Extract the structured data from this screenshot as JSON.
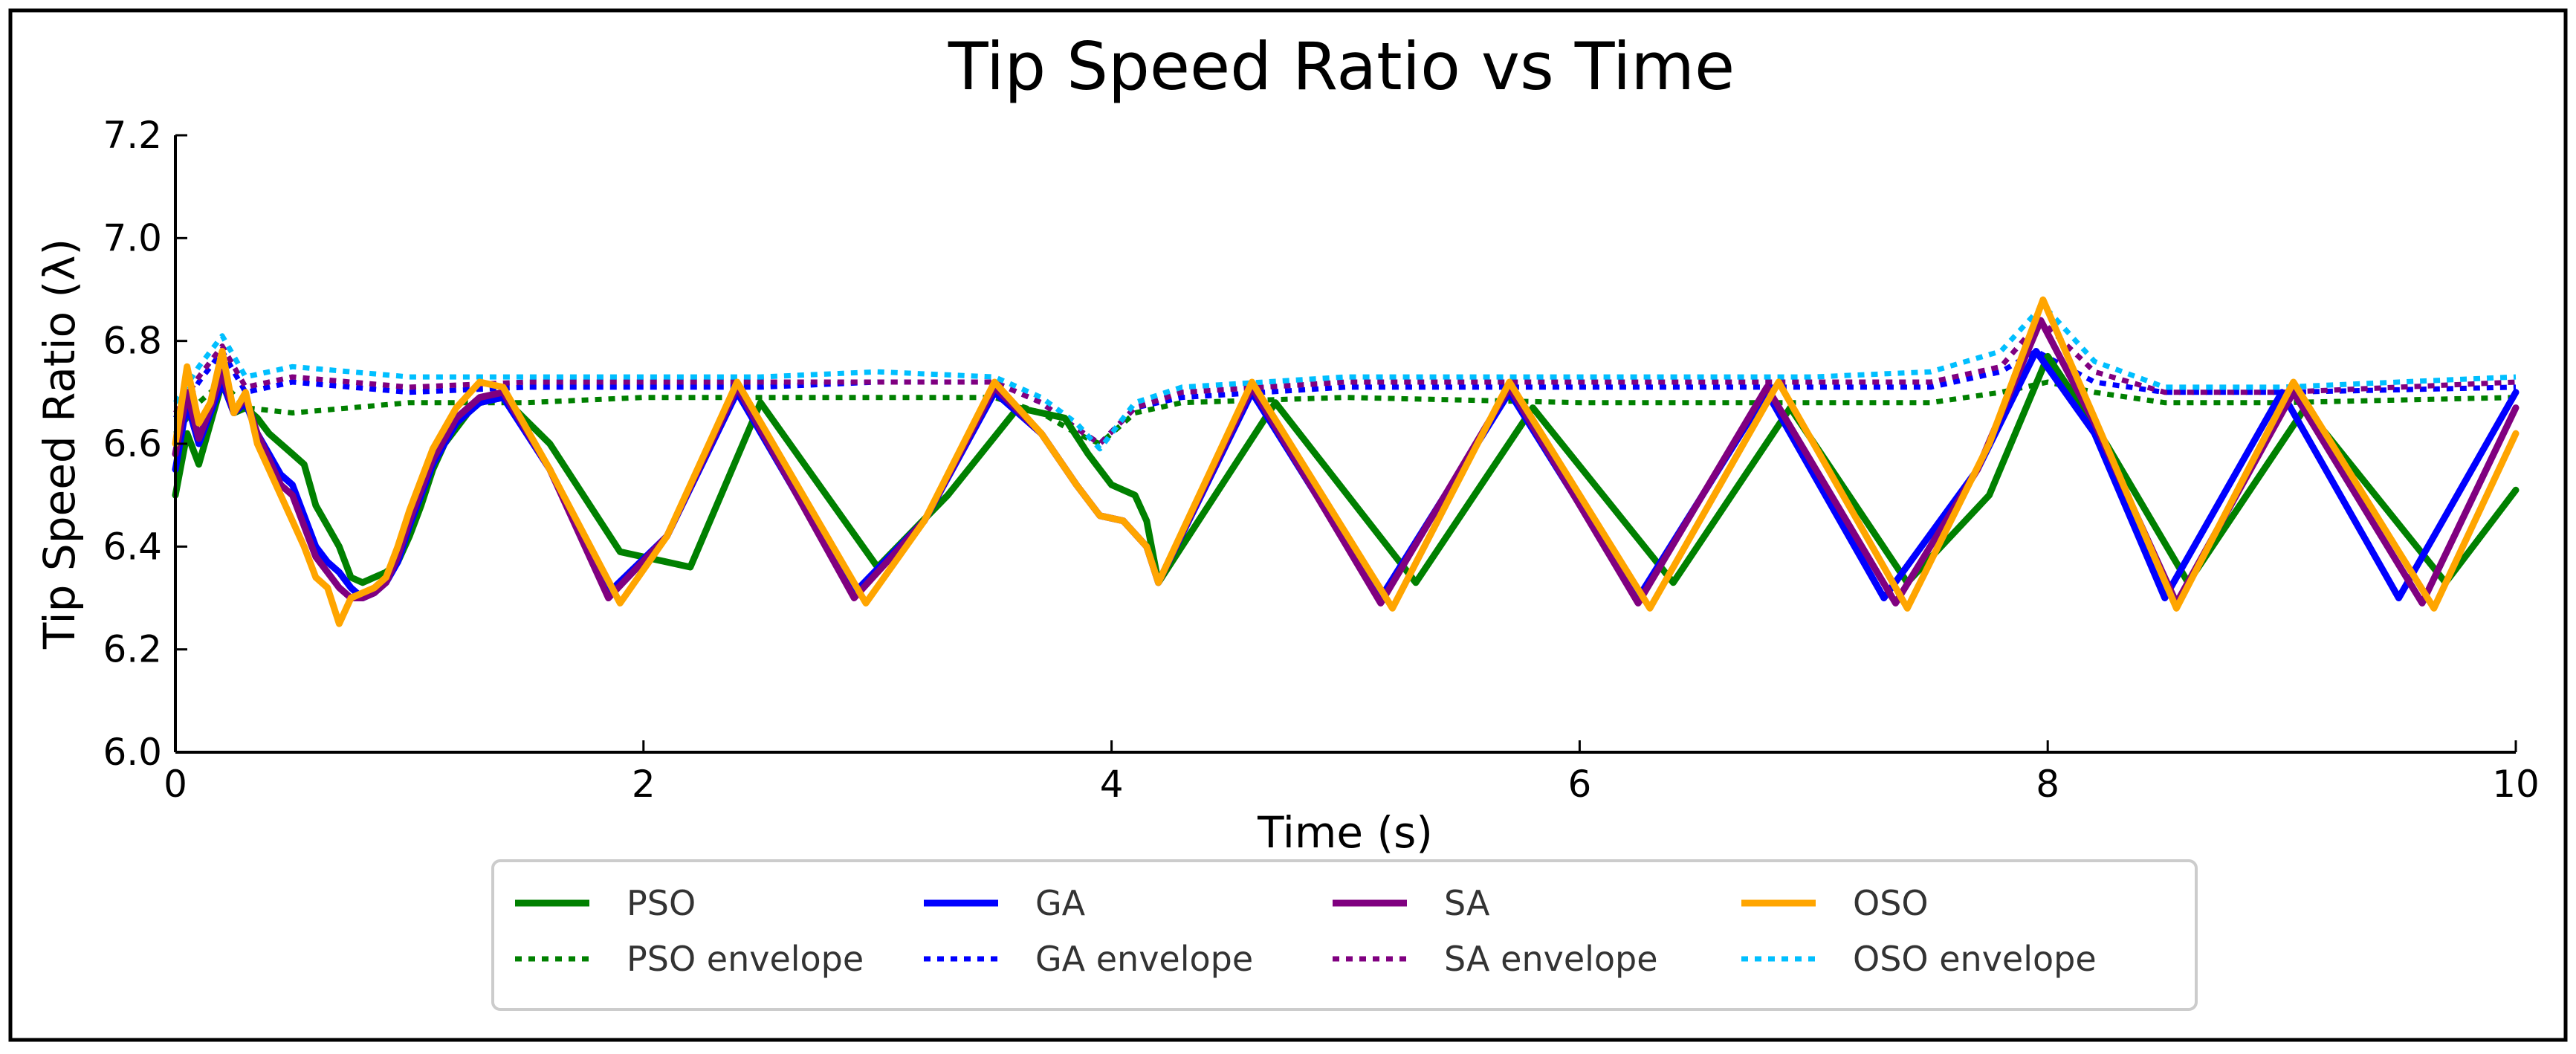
{
  "chart_data": {
    "type": "line",
    "title": "Tip Speed Ratio vs Time",
    "xlabel": "Time (s)",
    "ylabel": "Tip Speed Ratio (λ)",
    "xlim": [
      0,
      10
    ],
    "ylim": [
      6.0,
      7.2
    ],
    "x_ticks": [
      "0",
      "2",
      "4",
      "6",
      "8",
      "10"
    ],
    "y_ticks": [
      "6.0",
      "6.2",
      "6.4",
      "6.6",
      "6.8",
      "7.0",
      "7.2"
    ],
    "grid": false,
    "legend": {
      "placement": "bottom-outside",
      "columns": 4
    },
    "series": [
      {
        "name": "PSO",
        "style": "solid",
        "color": "#008000",
        "x": [
          0.0,
          0.05,
          0.1,
          0.15,
          0.2,
          0.25,
          0.3,
          0.35,
          0.4,
          0.45,
          0.5,
          0.55,
          0.6,
          0.65,
          0.7,
          0.75,
          0.8,
          0.85,
          0.9,
          0.95,
          1.0,
          1.05,
          1.1,
          1.15,
          1.2,
          1.25,
          1.3,
          1.4,
          1.6,
          1.9,
          2.2,
          2.5,
          3.0,
          3.3,
          3.6,
          3.8,
          3.9,
          4.0,
          4.1,
          4.15,
          4.2,
          4.7,
          5.3,
          5.8,
          6.4,
          6.9,
          7.4,
          7.75,
          8.0,
          8.25,
          8.6,
          9.1,
          9.7,
          10.0
        ],
        "y": [
          6.5,
          6.62,
          6.56,
          6.64,
          6.72,
          6.66,
          6.67,
          6.65,
          6.62,
          6.6,
          6.58,
          6.56,
          6.48,
          6.44,
          6.4,
          6.34,
          6.33,
          6.34,
          6.35,
          6.37,
          6.42,
          6.48,
          6.55,
          6.6,
          6.63,
          6.66,
          6.68,
          6.69,
          6.6,
          6.39,
          6.36,
          6.68,
          6.36,
          6.5,
          6.67,
          6.65,
          6.58,
          6.52,
          6.5,
          6.45,
          6.33,
          6.68,
          6.33,
          6.67,
          6.33,
          6.67,
          6.33,
          6.5,
          6.77,
          6.6,
          6.33,
          6.67,
          6.33,
          6.51
        ]
      },
      {
        "name": "GA",
        "style": "solid",
        "color": "#0000ff",
        "x": [
          0.0,
          0.05,
          0.1,
          0.15,
          0.2,
          0.25,
          0.3,
          0.35,
          0.4,
          0.45,
          0.5,
          0.55,
          0.6,
          0.65,
          0.7,
          0.75,
          0.8,
          0.85,
          0.9,
          0.95,
          1.0,
          1.1,
          1.2,
          1.3,
          1.4,
          1.6,
          1.85,
          2.1,
          2.4,
          2.9,
          3.2,
          3.5,
          3.7,
          3.85,
          3.95,
          4.05,
          4.15,
          4.2,
          4.6,
          5.15,
          5.7,
          6.25,
          6.8,
          7.3,
          7.7,
          7.95,
          8.2,
          8.5,
          9.0,
          9.5,
          10.0
        ],
        "y": [
          6.55,
          6.68,
          6.6,
          6.66,
          6.72,
          6.66,
          6.68,
          6.62,
          6.58,
          6.54,
          6.52,
          6.46,
          6.4,
          6.37,
          6.35,
          6.32,
          6.3,
          6.31,
          6.33,
          6.37,
          6.44,
          6.56,
          6.64,
          6.68,
          6.69,
          6.55,
          6.31,
          6.42,
          6.7,
          6.31,
          6.45,
          6.7,
          6.62,
          6.52,
          6.46,
          6.45,
          6.4,
          6.33,
          6.7,
          6.3,
          6.7,
          6.3,
          6.7,
          6.3,
          6.55,
          6.78,
          6.62,
          6.3,
          6.7,
          6.3,
          6.7
        ]
      },
      {
        "name": "SA",
        "style": "solid",
        "color": "#800080",
        "x": [
          0.0,
          0.05,
          0.1,
          0.15,
          0.2,
          0.25,
          0.3,
          0.35,
          0.4,
          0.45,
          0.5,
          0.55,
          0.6,
          0.65,
          0.7,
          0.75,
          0.8,
          0.85,
          0.9,
          0.95,
          1.0,
          1.1,
          1.2,
          1.3,
          1.4,
          1.6,
          1.85,
          2.1,
          2.4,
          2.9,
          3.2,
          3.5,
          3.7,
          3.85,
          3.95,
          4.05,
          4.15,
          4.2,
          4.6,
          5.15,
          5.7,
          6.25,
          6.8,
          7.35,
          7.7,
          7.97,
          8.2,
          8.55,
          9.05,
          9.6,
          10.0
        ],
        "y": [
          6.58,
          6.7,
          6.61,
          6.67,
          6.74,
          6.66,
          6.69,
          6.62,
          6.57,
          6.52,
          6.5,
          6.44,
          6.38,
          6.35,
          6.32,
          6.3,
          6.3,
          6.31,
          6.33,
          6.38,
          6.45,
          6.57,
          6.65,
          6.69,
          6.7,
          6.55,
          6.3,
          6.42,
          6.71,
          6.3,
          6.45,
          6.71,
          6.62,
          6.52,
          6.46,
          6.45,
          6.4,
          6.33,
          6.71,
          6.29,
          6.71,
          6.29,
          6.71,
          6.29,
          6.55,
          6.84,
          6.64,
          6.29,
          6.7,
          6.29,
          6.67
        ]
      },
      {
        "name": "OSO",
        "style": "solid",
        "color": "#ffa500",
        "x": [
          0.0,
          0.05,
          0.1,
          0.15,
          0.2,
          0.25,
          0.3,
          0.35,
          0.4,
          0.45,
          0.5,
          0.55,
          0.6,
          0.65,
          0.7,
          0.75,
          0.8,
          0.85,
          0.9,
          0.95,
          1.0,
          1.1,
          1.2,
          1.3,
          1.4,
          1.6,
          1.9,
          2.1,
          2.4,
          2.95,
          3.2,
          3.5,
          3.7,
          3.85,
          3.95,
          4.05,
          4.15,
          4.2,
          4.6,
          5.2,
          5.7,
          6.3,
          6.85,
          7.4,
          7.75,
          7.98,
          8.2,
          8.55,
          9.05,
          9.65,
          10.0
        ],
        "y": [
          6.6,
          6.75,
          6.64,
          6.68,
          6.78,
          6.66,
          6.7,
          6.6,
          6.55,
          6.5,
          6.45,
          6.4,
          6.34,
          6.32,
          6.25,
          6.3,
          6.31,
          6.32,
          6.34,
          6.4,
          6.47,
          6.59,
          6.67,
          6.72,
          6.71,
          6.55,
          6.29,
          6.42,
          6.72,
          6.29,
          6.45,
          6.72,
          6.62,
          6.52,
          6.46,
          6.45,
          6.4,
          6.33,
          6.72,
          6.28,
          6.72,
          6.28,
          6.72,
          6.28,
          6.6,
          6.88,
          6.65,
          6.28,
          6.72,
          6.28,
          6.62
        ]
      },
      {
        "name": "PSO envelope",
        "style": "dotted",
        "color": "#008000",
        "x": [
          0.0,
          0.1,
          0.2,
          0.3,
          0.5,
          1.0,
          1.5,
          2.0,
          2.5,
          3.0,
          3.5,
          3.7,
          3.85,
          3.95,
          4.1,
          4.3,
          5.0,
          6.0,
          7.0,
          7.5,
          7.8,
          8.0,
          8.2,
          8.5,
          9.0,
          10.0
        ],
        "y": [
          6.62,
          6.68,
          6.72,
          6.67,
          6.66,
          6.68,
          6.68,
          6.69,
          6.69,
          6.69,
          6.69,
          6.66,
          6.62,
          6.6,
          6.66,
          6.68,
          6.69,
          6.68,
          6.68,
          6.68,
          6.7,
          6.72,
          6.7,
          6.68,
          6.68,
          6.69
        ]
      },
      {
        "name": "GA envelope",
        "style": "dotted",
        "color": "#0000ff",
        "x": [
          0.0,
          0.1,
          0.2,
          0.3,
          0.5,
          1.0,
          1.5,
          2.0,
          2.5,
          3.0,
          3.5,
          3.7,
          3.85,
          3.95,
          4.1,
          4.3,
          5.0,
          6.0,
          7.0,
          7.5,
          7.8,
          7.95,
          8.2,
          8.5,
          9.0,
          10.0
        ],
        "y": [
          6.65,
          6.72,
          6.78,
          6.7,
          6.72,
          6.7,
          6.71,
          6.71,
          6.71,
          6.72,
          6.72,
          6.68,
          6.63,
          6.6,
          6.67,
          6.69,
          6.71,
          6.71,
          6.71,
          6.71,
          6.74,
          6.78,
          6.72,
          6.7,
          6.7,
          6.71
        ]
      },
      {
        "name": "SA envelope",
        "style": "dotted",
        "color": "#800080",
        "x": [
          0.0,
          0.1,
          0.2,
          0.3,
          0.5,
          1.0,
          1.5,
          2.0,
          2.5,
          3.0,
          3.5,
          3.7,
          3.85,
          3.95,
          4.1,
          4.3,
          5.0,
          6.0,
          7.0,
          7.5,
          7.8,
          7.97,
          8.2,
          8.5,
          9.0,
          10.0
        ],
        "y": [
          6.66,
          6.73,
          6.79,
          6.71,
          6.73,
          6.71,
          6.72,
          6.72,
          6.72,
          6.72,
          6.72,
          6.68,
          6.63,
          6.6,
          6.67,
          6.7,
          6.72,
          6.72,
          6.72,
          6.72,
          6.75,
          6.84,
          6.74,
          6.7,
          6.7,
          6.72
        ]
      },
      {
        "name": "OSO envelope",
        "style": "dotted",
        "color": "#00bfff",
        "x": [
          0.0,
          0.1,
          0.2,
          0.3,
          0.5,
          1.0,
          1.5,
          2.0,
          2.5,
          3.0,
          3.5,
          3.7,
          3.85,
          3.95,
          4.1,
          4.3,
          5.0,
          6.0,
          7.0,
          7.5,
          7.8,
          7.98,
          8.2,
          8.5,
          9.0,
          10.0
        ],
        "y": [
          6.68,
          6.75,
          6.81,
          6.73,
          6.75,
          6.73,
          6.73,
          6.73,
          6.73,
          6.74,
          6.73,
          6.69,
          6.64,
          6.59,
          6.68,
          6.71,
          6.73,
          6.73,
          6.73,
          6.74,
          6.78,
          6.87,
          6.76,
          6.71,
          6.71,
          6.73
        ]
      }
    ]
  }
}
